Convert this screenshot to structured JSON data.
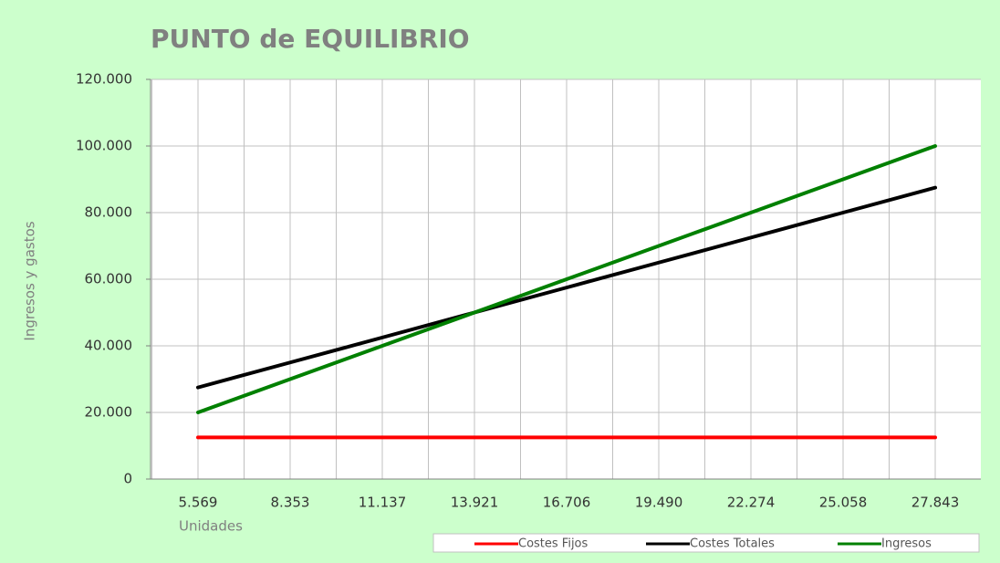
{
  "chart_data": {
    "type": "line",
    "title": "PUNTO de EQUILIBRIO",
    "x_label": "Unidades",
    "y_label": "Ingresos y gastos",
    "categories": [
      "5.569",
      "8.353",
      "11.137",
      "13.921",
      "16.706",
      "19.490",
      "22.274",
      "25.058",
      "27.843"
    ],
    "series": [
      {
        "name": "Costes Fijos",
        "color": "#ff0000",
        "values": [
          12500,
          12500,
          12500,
          12500,
          12500,
          12500,
          12500,
          12500,
          12500
        ]
      },
      {
        "name": "Costes Totales",
        "color": "#000000",
        "values": [
          27500,
          35000,
          42500,
          50000,
          57500,
          65000,
          72500,
          80000,
          87500
        ]
      },
      {
        "name": "Ingresos",
        "color": "#008000",
        "values": [
          20000,
          30000,
          40000,
          50000,
          60000,
          70000,
          80000,
          90000,
          100000
        ]
      }
    ],
    "ylim": [
      0,
      120000
    ],
    "yticks": [
      0,
      {
        "value": 20000,
        "label": "20.000"
      },
      {
        "value": 40000,
        "label": "40.000"
      },
      {
        "value": 60000,
        "label": "60.000"
      },
      {
        "value": 80000,
        "label": "80.000"
      },
      {
        "value": 100000,
        "label": "100.000"
      },
      {
        "value": 120000,
        "label": "120.000"
      }
    ],
    "grid": true,
    "legend": "bottom"
  }
}
